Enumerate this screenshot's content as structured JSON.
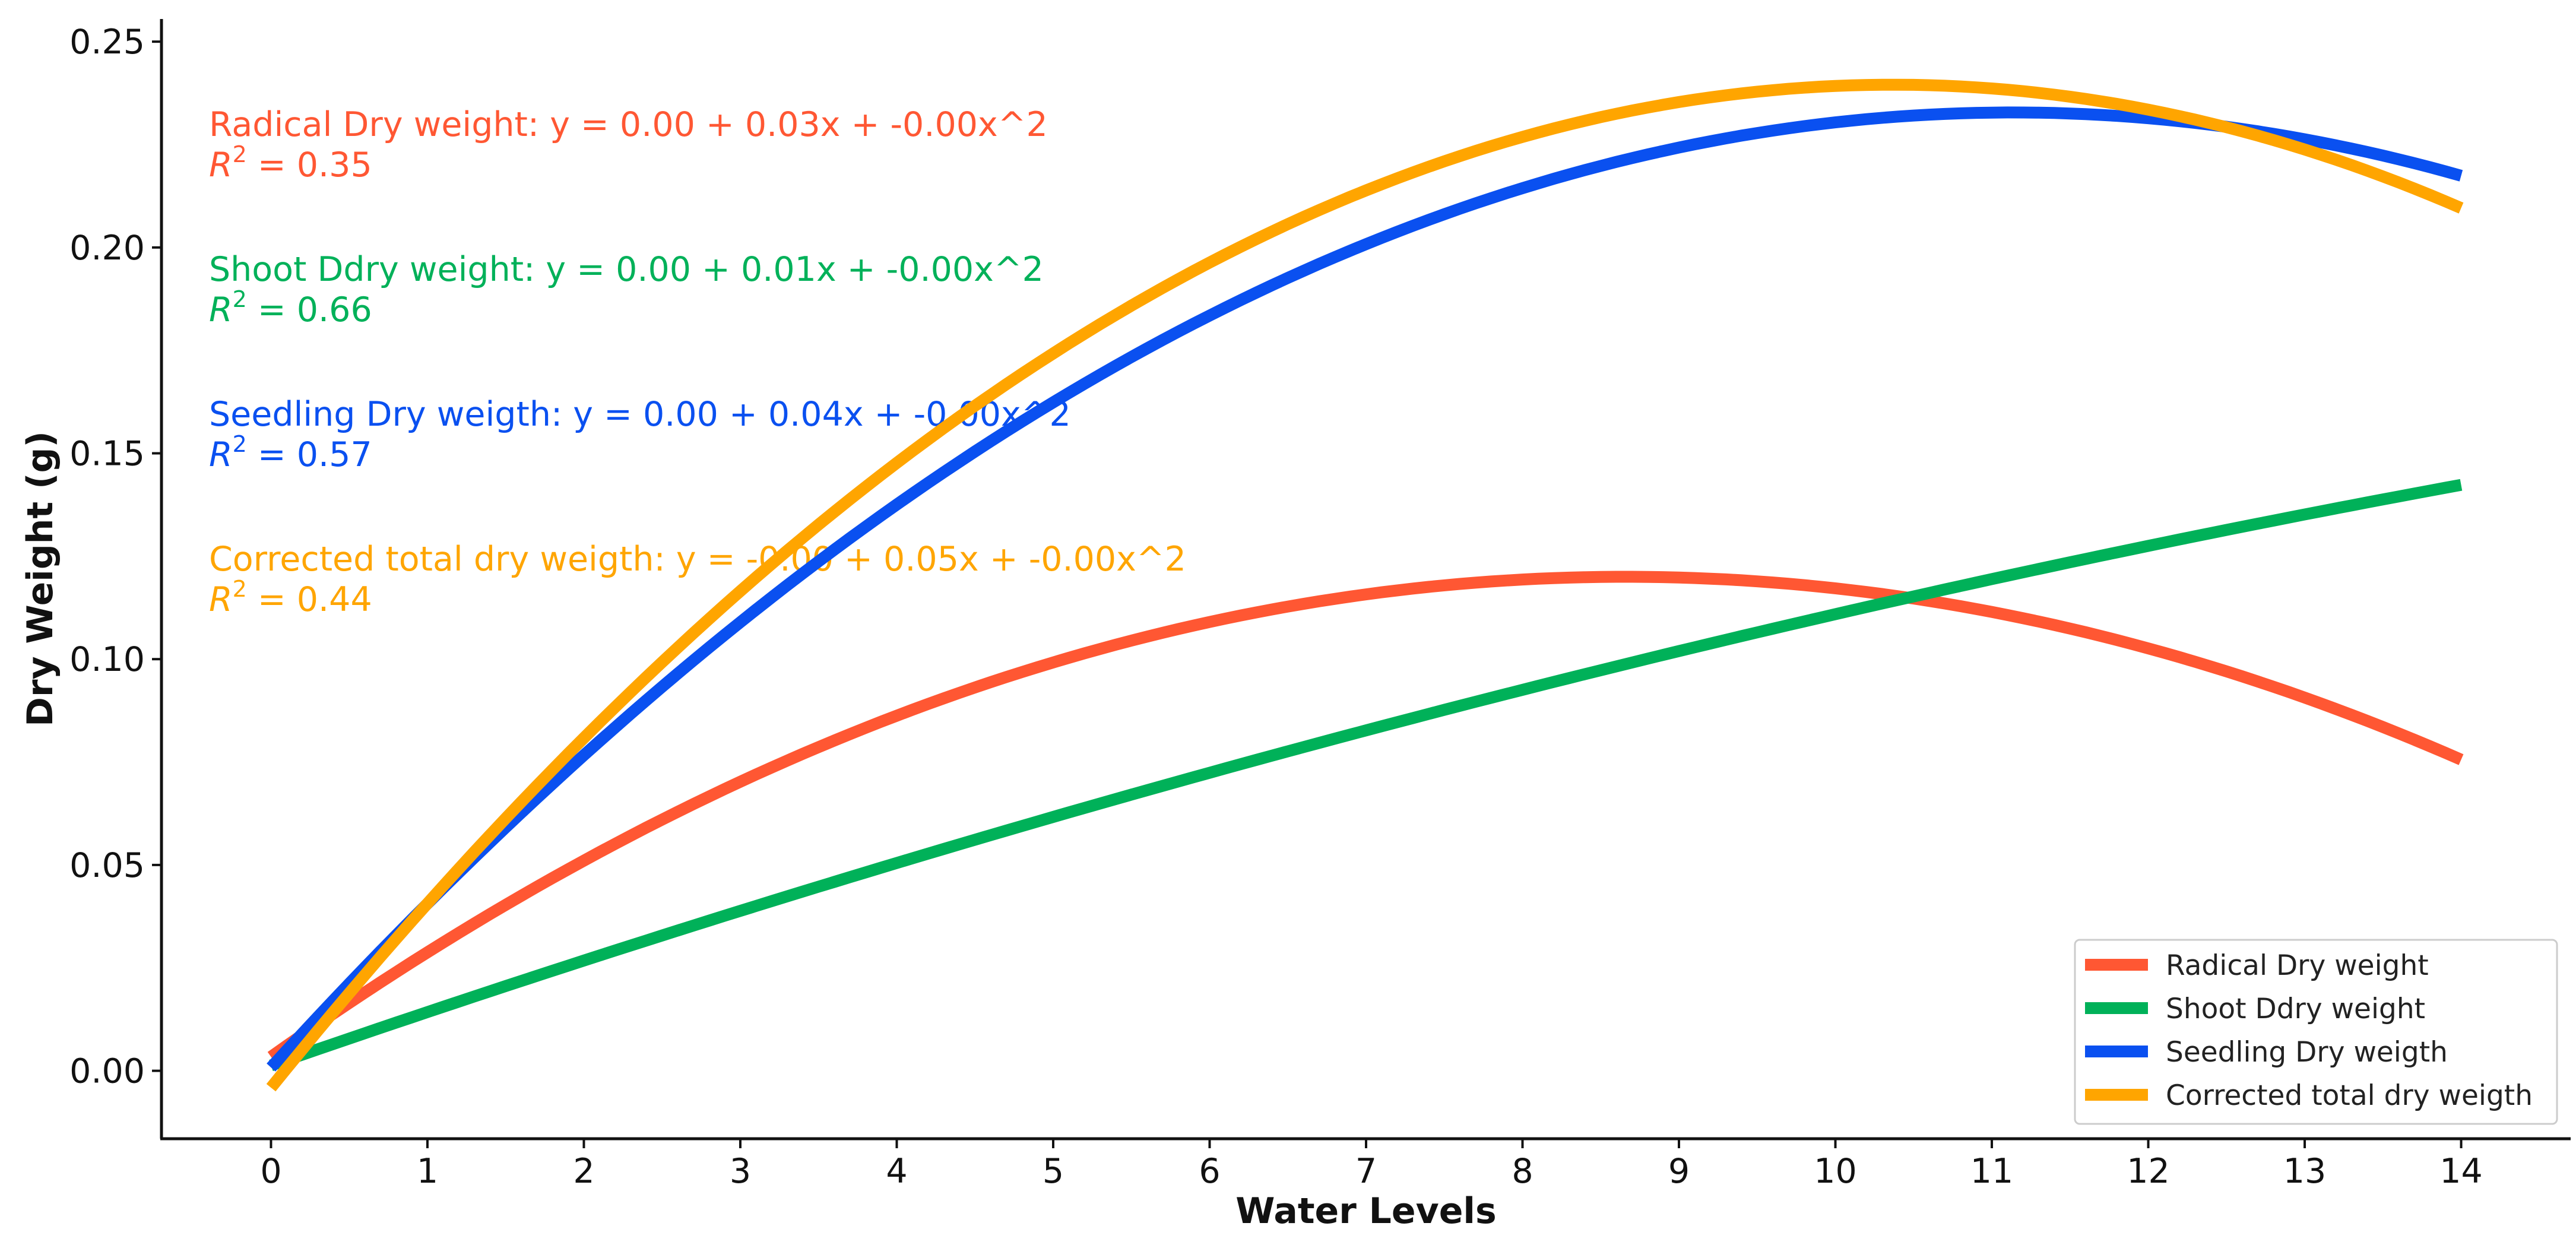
{
  "chart_data": {
    "type": "line",
    "title": "",
    "xlabel": "Water Levels",
    "ylabel": "Dry Weight (g)",
    "xlim": [
      -0.7,
      14.7
    ],
    "ylim": [
      -0.0165,
      0.2555
    ],
    "x_ticks": [
      0,
      1,
      2,
      3,
      4,
      5,
      6,
      7,
      8,
      9,
      10,
      11,
      12,
      13,
      14
    ],
    "x_tick_labels": [
      "0",
      "1",
      "2",
      "3",
      "4",
      "5",
      "6",
      "7",
      "8",
      "9",
      "10",
      "11",
      "12",
      "13",
      "14"
    ],
    "y_ticks": [
      0,
      0.05,
      0.1,
      0.15,
      0.2,
      0.25
    ],
    "y_tick_labels": [
      "0.00",
      "0.05",
      "0.10",
      "0.15",
      "0.20",
      "0.25"
    ],
    "grid": false,
    "legend_position": "bottom-right",
    "x_range": [
      0,
      14
    ],
    "series": [
      {
        "name": "Radical Dry weight",
        "color": "#FF5733",
        "coefficients": [
          0.0034,
          0.02694,
          -0.001556
        ],
        "r2": 0.35
      },
      {
        "name": "Shoot Ddry weight",
        "color": "#00B159",
        "coefficients": [
          0.0013,
          0.013183,
          -0.0002221
        ],
        "r2": 0.66
      },
      {
        "name": "Seedling Dry weigth",
        "color": "#0A50F0",
        "coefficients": [
          0.0008,
          0.041673,
          -0.0018714
        ],
        "r2": 0.57
      },
      {
        "name": "Corrected total dry weigth",
        "color": "#FFA500",
        "coefficients": [
          -0.0041,
          0.047013,
          -0.0022679
        ],
        "r2": 0.44
      }
    ],
    "annotations": [
      {
        "equation": "Radical Dry weight: y = 0.00 + 0.03x + -0.00x^2",
        "r2_label": "R",
        "r2_sup": "2",
        "r2_value": " = 0.35",
        "color": "#FF5733"
      },
      {
        "equation": "Shoot Ddry weight: y = 0.00 + 0.01x + -0.00x^2",
        "r2_label": "R",
        "r2_sup": "2",
        "r2_value": " = 0.66",
        "color": "#00B159"
      },
      {
        "equation": "Seedling Dry weigth: y = 0.00 + 0.04x + -0.00x^2",
        "r2_label": "R",
        "r2_sup": "2",
        "r2_value": " = 0.57",
        "color": "#0A50F0"
      },
      {
        "equation": "Corrected total dry weigth: y = -0.00 + 0.05x + -0.00x^2",
        "r2_label": "R",
        "r2_sup": "2",
        "r2_value": " = 0.44",
        "color": "#FFA500"
      }
    ]
  }
}
